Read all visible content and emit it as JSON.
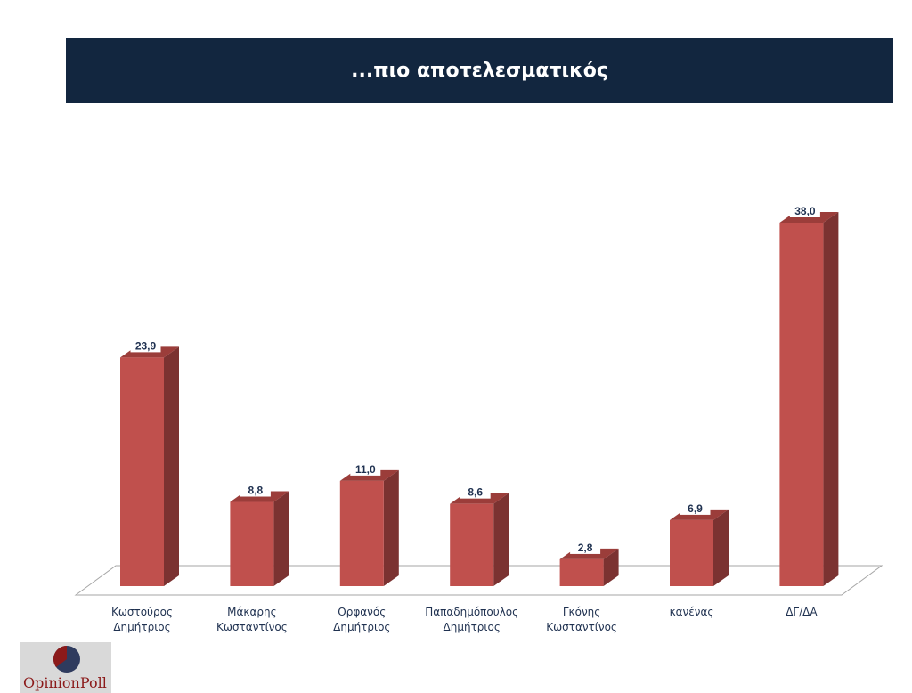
{
  "title": "...πιο αποτελεσματικός",
  "logo_text": "OpinionPoll",
  "colors": {
    "bar_front": "#c0504d",
    "bar_side": "#7b3231",
    "bar_top": "#9b3d3a",
    "label": "#1f3150",
    "title_bg": "#12263f"
  },
  "chart_data": {
    "type": "bar",
    "title": "...πιο αποτελεσματικός",
    "categories": [
      [
        "Κωστούρος",
        "Δημήτριος"
      ],
      [
        "Μάκαρης",
        "Κωσταντίνος"
      ],
      [
        "Ορφανός",
        "Δημήτριος"
      ],
      [
        "Παπαδημόπουλος",
        "Δημήτριος"
      ],
      [
        "Γκόνης",
        "Κωσταντίνος"
      ],
      [
        "κανένας"
      ],
      [
        "ΔΓ/ΔΑ"
      ]
    ],
    "values": [
      23.9,
      8.8,
      11.0,
      8.6,
      2.8,
      6.9,
      38.0
    ],
    "value_labels": [
      "23,9",
      "8,8",
      "11,0",
      "8,6",
      "2,8",
      "6,9",
      "38,0"
    ],
    "ylim": [
      0,
      38
    ],
    "grid": false,
    "three_d": true
  }
}
